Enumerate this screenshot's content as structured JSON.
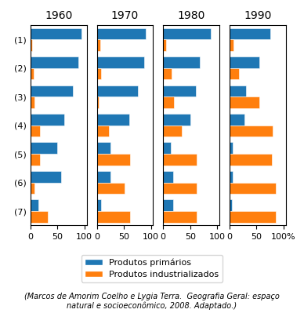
{
  "chart_data": [
    {
      "type": "bar",
      "orientation": "horizontal",
      "title": "1960",
      "categories": [
        "(1)",
        "(2)",
        "(3)",
        "(4)",
        "(5)",
        "(6)",
        "(7)"
      ],
      "series": [
        {
          "name": "Produtos primários",
          "values": [
            95,
            88,
            78,
            63,
            50,
            57,
            15
          ]
        },
        {
          "name": "Produtos industrializados",
          "values": [
            3,
            6,
            8,
            18,
            18,
            8,
            32
          ]
        }
      ],
      "xlim": [
        0,
        104
      ],
      "xticks": [
        0,
        50,
        100
      ],
      "legend": "lower center",
      "annotations": [
        "(Marcos de Amorim Coelho e Lygia Terra.  Geografia Geral: espaço\nnatural e socioeconômico, 2008. Adaptado.)"
      ]
    },
    {
      "type": "bar",
      "orientation": "horizontal",
      "title": "1970",
      "categories": [
        "(1)",
        "(2)",
        "(3)",
        "(4)",
        "(5)",
        "(6)",
        "(7)"
      ],
      "series": [
        {
          "name": "Produtos primários",
          "values": [
            90,
            88,
            76,
            60,
            25,
            25,
            8
          ]
        },
        {
          "name": "Produtos industrializados",
          "values": [
            6,
            8,
            4,
            22,
            62,
            52,
            62
          ]
        }
      ],
      "xlim": [
        0,
        104
      ],
      "xticks": [
        0,
        50,
        100
      ],
      "tick_labels": "x"
    },
    {
      "type": "bar",
      "orientation": "horizontal",
      "title": "1980",
      "categories": [
        "(1)",
        "(2)",
        "(3)",
        "(4)",
        "(5)",
        "(6)",
        "(7)"
      ],
      "series": [
        {
          "name": "Produtos primários",
          "values": [
            88,
            68,
            60,
            50,
            14,
            18,
            18
          ]
        },
        {
          "name": "Produtos industrializados",
          "values": [
            6,
            15,
            20,
            35,
            62,
            62,
            62
          ]
        }
      ],
      "xlim": [
        0,
        104
      ],
      "xticks": [
        0,
        50,
        100
      ],
      "tick_labels": "x"
    },
    {
      "type": "bar",
      "orientation": "horizontal",
      "title": "1990",
      "categories": [
        "(1)",
        "(2)",
        "(3)",
        "(4)",
        "(5)",
        "(6)",
        "(7)"
      ],
      "series": [
        {
          "name": "Produtos primários",
          "values": [
            75,
            55,
            30,
            28,
            6,
            6,
            4
          ]
        },
        {
          "name": "Produtos industrializados",
          "values": [
            8,
            18,
            55,
            80,
            78,
            85,
            85
          ]
        }
      ],
      "xlim": [
        0,
        104
      ],
      "xticks": [
        0,
        50,
        {
          "value": 100,
          "label": "100%"
        }
      ],
      "tick_labels": "x"
    }
  ]
}
